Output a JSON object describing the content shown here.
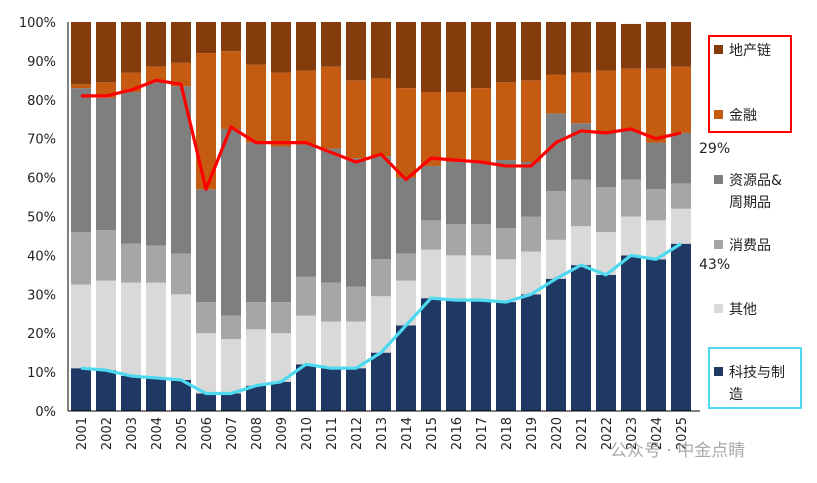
{
  "chart_data": {
    "type": "bar",
    "stacked": true,
    "categories": [
      "2001",
      "2002",
      "2003",
      "2004",
      "2005",
      "2006",
      "2007",
      "2008",
      "2009",
      "2010",
      "2011",
      "2012",
      "2013",
      "2014",
      "2015",
      "2016",
      "2017",
      "2018",
      "2019",
      "2020",
      "2021",
      "2022",
      "2023",
      "2024",
      "2025"
    ],
    "ylim": [
      0,
      100
    ],
    "yticks": [
      "0%",
      "10%",
      "20%",
      "30%",
      "40%",
      "50%",
      "60%",
      "70%",
      "80%",
      "90%",
      "100%"
    ],
    "series": [
      {
        "name": "科技与制\n造",
        "color": "#1f3864",
        "values": [
          11,
          10.5,
          9,
          8.5,
          8,
          4.5,
          4.5,
          6.5,
          7.5,
          12,
          11,
          11,
          15,
          22,
          29,
          28.5,
          28.5,
          28,
          30,
          34,
          37.5,
          35,
          40,
          39,
          43
        ]
      },
      {
        "name": "其他",
        "color": "#d9d9d9",
        "values": [
          21.5,
          23,
          24,
          24.5,
          22,
          15.5,
          14,
          14.5,
          12.5,
          12.5,
          12,
          12,
          14.5,
          11.5,
          12.5,
          11.5,
          11.5,
          11,
          11,
          10,
          10,
          11,
          10,
          10,
          9
        ]
      },
      {
        "name": "消费品",
        "color": "#a6a6a6",
        "values": [
          13.5,
          13,
          10,
          9.5,
          10.5,
          8,
          6,
          7,
          8,
          10,
          10,
          9,
          9.5,
          7,
          7.5,
          8,
          8,
          8,
          9,
          12.5,
          12,
          11.5,
          9.5,
          8,
          6.5
        ]
      },
      {
        "name": "资源品&\n周期品",
        "color": "#7f7f7f",
        "values": [
          37,
          34,
          39,
          42,
          43,
          29,
          48,
          41,
          40,
          34,
          34.5,
          33,
          26.5,
          19.5,
          14,
          16,
          16,
          17.5,
          14,
          20,
          14.5,
          14,
          12.5,
          12,
          13
        ]
      },
      {
        "name": "金融",
        "color": "#c55a11",
        "values": [
          1,
          4,
          5,
          4,
          6,
          35,
          20,
          20,
          19,
          19,
          21,
          20,
          20,
          23,
          19,
          18,
          19,
          20,
          21,
          10,
          13,
          16,
          16,
          19,
          17
        ]
      },
      {
        "name": "地产链",
        "color": "#843c0c",
        "values": [
          16,
          15.5,
          13,
          11.5,
          10.5,
          8,
          7.5,
          11,
          13,
          12.5,
          11.5,
          15,
          14.5,
          17,
          18,
          18,
          17,
          15.5,
          15,
          13.5,
          13,
          12.5,
          11.5,
          12,
          11.5
        ]
      }
    ],
    "lines": [
      {
        "color": "#ff0000",
        "values": [
          81,
          81,
          82.5,
          85,
          84,
          57,
          73,
          69,
          69,
          69,
          66.5,
          64,
          66,
          59.5,
          65,
          64.5,
          64,
          63,
          63,
          69,
          72,
          71.5,
          72.5,
          70,
          71.5
        ]
      },
      {
        "color": "#4dd9f0",
        "values": [
          11,
          10.5,
          9,
          8.5,
          8,
          4.5,
          4.5,
          6.5,
          7.5,
          12,
          11,
          11,
          15,
          22,
          29,
          28.5,
          28.5,
          28,
          30,
          34,
          37.5,
          35,
          40,
          39,
          43
        ]
      }
    ],
    "annotations": {
      "red_end": "29%",
      "cyan_end": "43%"
    },
    "legend": {
      "placement": "right",
      "order": [
        5,
        4,
        3,
        2,
        1,
        0
      ],
      "red_box_items": [
        5,
        4
      ],
      "cyan_box_items": [
        0
      ]
    },
    "grid": false
  },
  "watermark": {
    "text": "公众号 · 中金点睛"
  }
}
